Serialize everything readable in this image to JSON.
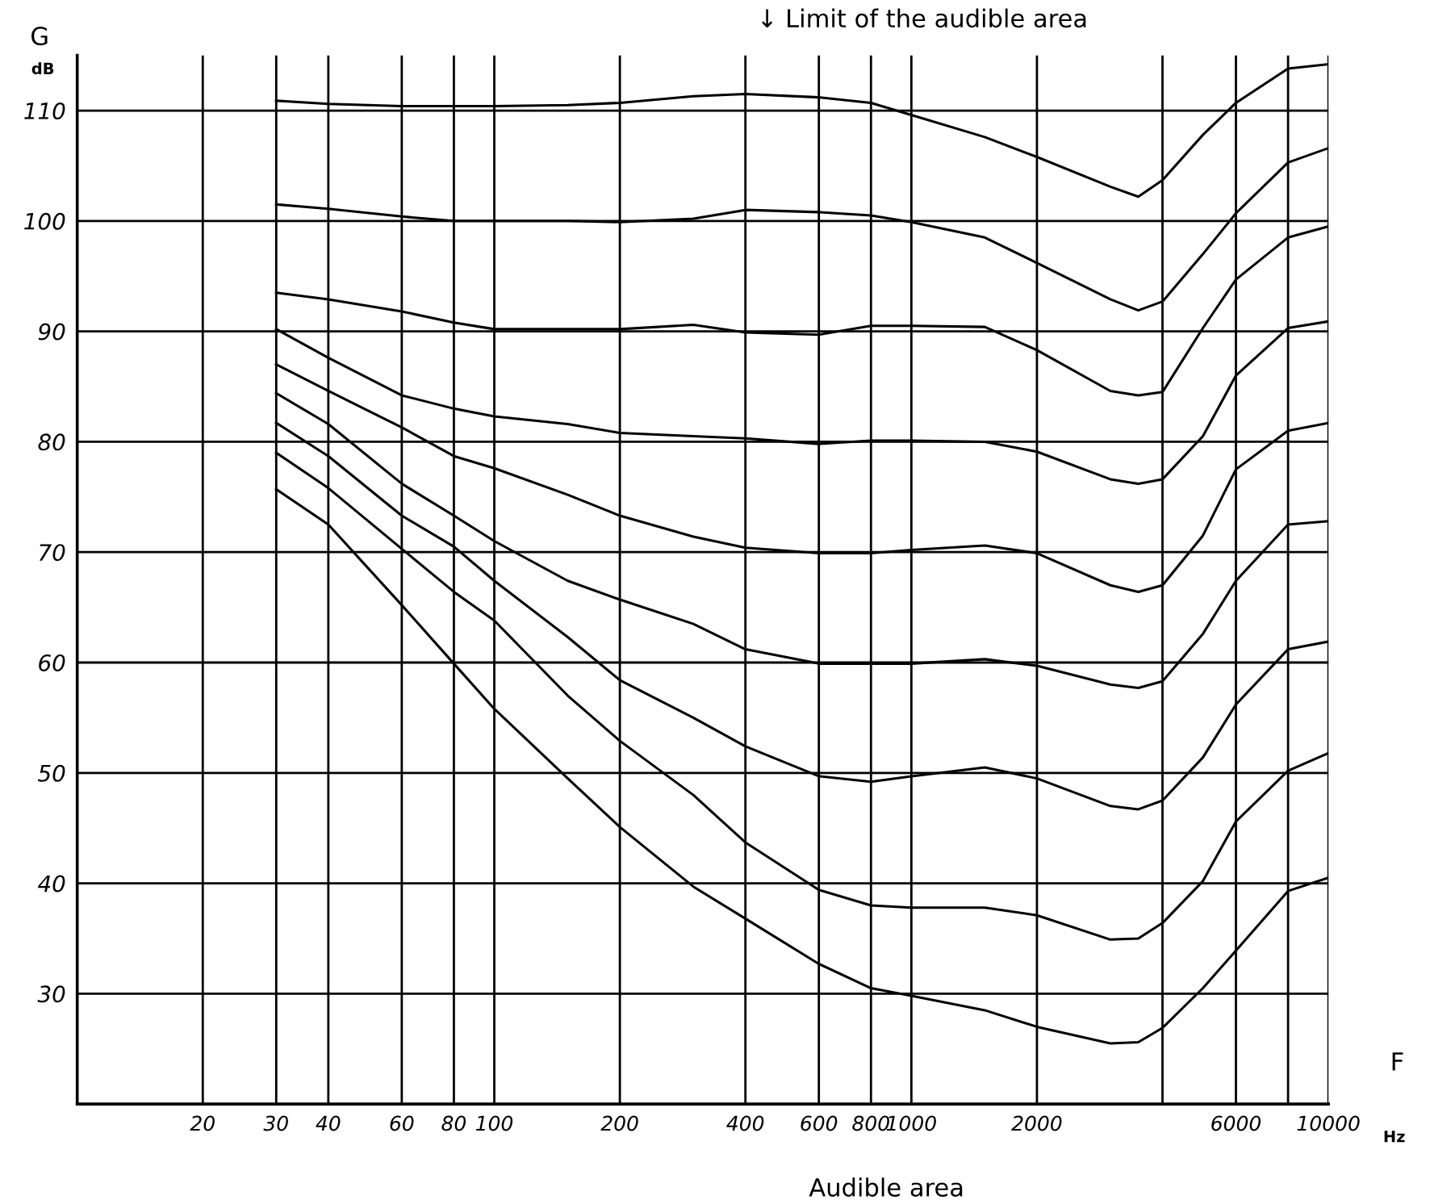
{
  "chart_data": {
    "type": "line",
    "xlabel": "F",
    "ylabel": "G",
    "annotations": [
      "dB",
      "Hz",
      "↓ Limit of the audible area",
      "Audible area"
    ],
    "x": [
      30,
      40,
      60,
      80,
      100,
      150,
      200,
      300,
      400,
      600,
      800,
      1000,
      1500,
      2000,
      3000,
      3500,
      4000,
      5000,
      6000,
      8000,
      10000
    ],
    "series": [
      {
        "color": "#000000",
        "values": [
          110.9,
          110.6,
          110.4,
          110.4,
          110.4,
          110.5,
          110.7,
          111.3,
          111.5,
          111.2,
          110.7,
          109.6,
          107.6,
          105.8,
          103.1,
          102.2,
          103.7,
          107.8,
          110.7,
          113.8,
          114.2
        ]
      },
      {
        "color": "#000000",
        "values": [
          101.5,
          101.1,
          100.4,
          100,
          100,
          100,
          99.9,
          100.2,
          101,
          100.8,
          100.5,
          99.9,
          98.5,
          96.2,
          92.9,
          91.9,
          92.7,
          97,
          100.7,
          105.3,
          106.6
        ]
      },
      {
        "color": "#000000",
        "values": [
          93.5,
          92.9,
          91.8,
          90.8,
          90.2,
          90.2,
          90.2,
          90.6,
          89.9,
          89.7,
          90.5,
          90.5,
          90.4,
          88.3,
          84.6,
          84.2,
          84.5,
          90.3,
          94.7,
          98.5,
          99.5
        ]
      },
      {
        "color": "#000000",
        "values": [
          90.2,
          87.6,
          84.2,
          83,
          82.3,
          81.6,
          80.8,
          80.5,
          80.3,
          79.8,
          80.1,
          80.1,
          80,
          79.1,
          76.6,
          76.2,
          76.6,
          80.5,
          86,
          90.3,
          90.9
        ]
      },
      {
        "color": "#000000",
        "values": [
          87,
          84.6,
          81.3,
          78.7,
          77.6,
          75.2,
          73.3,
          71.4,
          70.4,
          69.9,
          69.9,
          70.2,
          70.6,
          69.9,
          67,
          66.4,
          67,
          71.5,
          77.5,
          81,
          81.7
        ]
      },
      {
        "color": "#000000",
        "values": [
          84.4,
          81.6,
          76.2,
          73.3,
          71,
          67.4,
          65.7,
          63.5,
          61.2,
          59.9,
          59.9,
          59.9,
          60.3,
          59.7,
          58,
          57.7,
          58.3,
          62.6,
          67.4,
          72.5,
          72.8
        ]
      },
      {
        "color": "#000000",
        "values": [
          81.7,
          78.7,
          73.3,
          70.5,
          67.4,
          62.3,
          58.4,
          55,
          52.4,
          49.7,
          49.2,
          49.7,
          50.5,
          49.5,
          47,
          46.7,
          47.5,
          51.4,
          56.2,
          61.2,
          61.9
        ]
      },
      {
        "color": "#000000",
        "values": [
          79,
          75.8,
          70.3,
          66.4,
          63.8,
          57,
          52.9,
          48,
          43.7,
          39.4,
          38,
          37.8,
          37.8,
          37.1,
          34.9,
          35,
          36.4,
          40.2,
          45.6,
          50.2,
          51.8
        ]
      },
      {
        "color": "#000000",
        "values": [
          75.7,
          72.5,
          65.2,
          59.9,
          55.8,
          49.5,
          45.1,
          39.7,
          36.8,
          32.7,
          30.5,
          29.8,
          28.5,
          27,
          25.5,
          25.6,
          26.9,
          30.5,
          33.9,
          39.3,
          40.5
        ]
      }
    ],
    "log": "x",
    "xlim": [
      10,
      10000
    ],
    "ylim": [
      20,
      115
    ],
    "xticks": [
      20,
      30,
      40,
      60,
      80,
      100,
      200,
      400,
      600,
      800,
      1000,
      2000,
      {
        "value": 4000,
        "label": null
      },
      6000,
      {
        "value": 8000,
        "label": null
      },
      10000
    ],
    "yticks": [
      30,
      40,
      50,
      60,
      70,
      80,
      90,
      100,
      110
    ],
    "grid": true,
    "marker": "none",
    "line_style": "solid",
    "legend": false
  }
}
